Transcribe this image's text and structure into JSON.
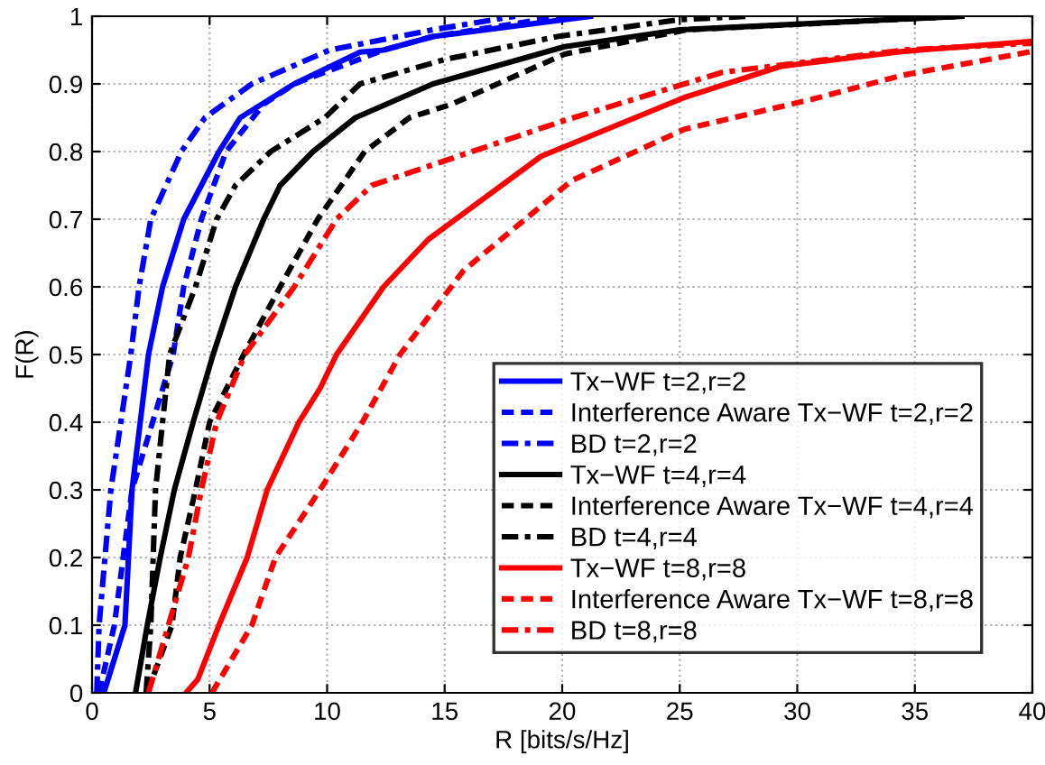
{
  "chart_data": {
    "type": "line",
    "xlabel": "R [bits/s/Hz]",
    "ylabel": "F(R)",
    "xlim": [
      0,
      40
    ],
    "xticks": [
      0,
      5,
      10,
      15,
      20,
      25,
      30,
      35,
      40
    ],
    "ylim": [
      0,
      1
    ],
    "yticks": [
      0,
      0.1,
      0.2,
      0.3,
      0.4,
      0.5,
      0.6,
      0.7,
      0.8,
      0.9,
      1
    ],
    "grid": true,
    "legend": "bottom right",
    "marker": "none",
    "series": [
      {
        "name": "Tx−WF t=2,r=2",
        "color": "#0000ff",
        "line_style": "solid",
        "x": [
          0.5,
          1.4,
          1.7,
          2.4,
          3.0,
          3.9,
          5.4,
          6.3,
          8.6,
          11.4,
          12.4,
          14.5,
          21.2
        ],
        "values": [
          0,
          0.1,
          0.3,
          0.5,
          0.6,
          0.7,
          0.8,
          0.85,
          0.9,
          0.947,
          0.95,
          0.97,
          1
        ]
      },
      {
        "name": "Interference Aware Tx−WF t=2,r=2",
        "color": "#0000ff",
        "line_style": "dashed",
        "x": [
          0.3,
          0.95,
          1.7,
          3.45,
          3.9,
          4.65,
          5.7,
          7.3,
          8.6,
          12.4,
          14.5,
          20
        ],
        "values": [
          0,
          0.1,
          0.3,
          0.5,
          0.6,
          0.7,
          0.8,
          0.87,
          0.9,
          0.95,
          0.97,
          1
        ]
      },
      {
        "name": "BD t=2,r=2",
        "color": "#0000ff",
        "line_style": "dashdot",
        "x": [
          0.2,
          0.3,
          0.8,
          1.65,
          2.0,
          2.5,
          3.8,
          4.8,
          6.8,
          10.1,
          14.5,
          18
        ],
        "values": [
          0,
          0.1,
          0.3,
          0.5,
          0.6,
          0.7,
          0.8,
          0.85,
          0.9,
          0.95,
          0.98,
          1
        ]
      },
      {
        "name": "Tx−WF t=4,r=4",
        "color": "#000000",
        "line_style": "solid",
        "x": [
          1.85,
          2.35,
          2.9,
          3.5,
          4.3,
          5.15,
          6.1,
          7.3,
          8.0,
          9.4,
          11.2,
          14.5,
          20.1,
          25,
          37
        ],
        "values": [
          0,
          0.1,
          0.2,
          0.3,
          0.4,
          0.5,
          0.6,
          0.7,
          0.75,
          0.8,
          0.85,
          0.9,
          0.955,
          0.98,
          1
        ]
      },
      {
        "name": "Interference Aware Tx−WF t=4,r=4",
        "color": "#000000",
        "line_style": "dashed",
        "x": [
          2.35,
          3.4,
          3.75,
          4.4,
          5.0,
          6.45,
          8.0,
          9.6,
          11.6,
          13.5,
          15.3,
          20.1,
          25.3,
          37
        ],
        "values": [
          0,
          0.1,
          0.2,
          0.3,
          0.4,
          0.5,
          0.6,
          0.7,
          0.8,
          0.85,
          0.87,
          0.944,
          0.98,
          1
        ]
      },
      {
        "name": "BD t=4,r=4",
        "color": "#000000",
        "line_style": "dashdot",
        "x": [
          2.3,
          2.5,
          2.7,
          3.3,
          4.4,
          5.3,
          6.1,
          7.6,
          9.9,
          11.4,
          15,
          19.8,
          25,
          28
        ],
        "values": [
          0,
          0.1,
          0.3,
          0.5,
          0.6,
          0.7,
          0.75,
          0.8,
          0.85,
          0.9,
          0.936,
          0.97,
          0.995,
          1
        ]
      },
      {
        "name": "Tx−WF t=8,r=8",
        "color": "#ff0000",
        "line_style": "solid",
        "x": [
          4.0,
          4.5,
          5.4,
          6.6,
          7.45,
          8.8,
          9.7,
          10.4,
          12.4,
          14.3,
          19.1,
          25.2,
          29.3,
          34.5,
          40
        ],
        "values": [
          0,
          0.02,
          0.1,
          0.2,
          0.3,
          0.4,
          0.45,
          0.5,
          0.6,
          0.67,
          0.793,
          0.88,
          0.926,
          0.948,
          0.963
        ]
      },
      {
        "name": "Interference Aware Tx−WF t=8,r=8",
        "color": "#ff0000",
        "line_style": "dashed",
        "x": [
          5.1,
          6.8,
          7.8,
          9.7,
          11.5,
          13.1,
          15.8,
          20.4,
          25.2,
          30.6,
          34.5,
          40
        ],
        "values": [
          0,
          0.1,
          0.2,
          0.3,
          0.4,
          0.5,
          0.624,
          0.757,
          0.833,
          0.877,
          0.913,
          0.948
        ]
      },
      {
        "name": "BD t=8,r=8",
        "color": "#ff0000",
        "line_style": "dashdot",
        "x": [
          2.4,
          3.25,
          4.1,
          4.65,
          5.3,
          6.5,
          8.6,
          10.4,
          11.9,
          14.8,
          20.1,
          26.8,
          34.5,
          40
        ],
        "values": [
          0,
          0.1,
          0.2,
          0.3,
          0.4,
          0.5,
          0.6,
          0.7,
          0.75,
          0.784,
          0.846,
          0.917,
          0.95,
          0.96
        ]
      }
    ]
  }
}
